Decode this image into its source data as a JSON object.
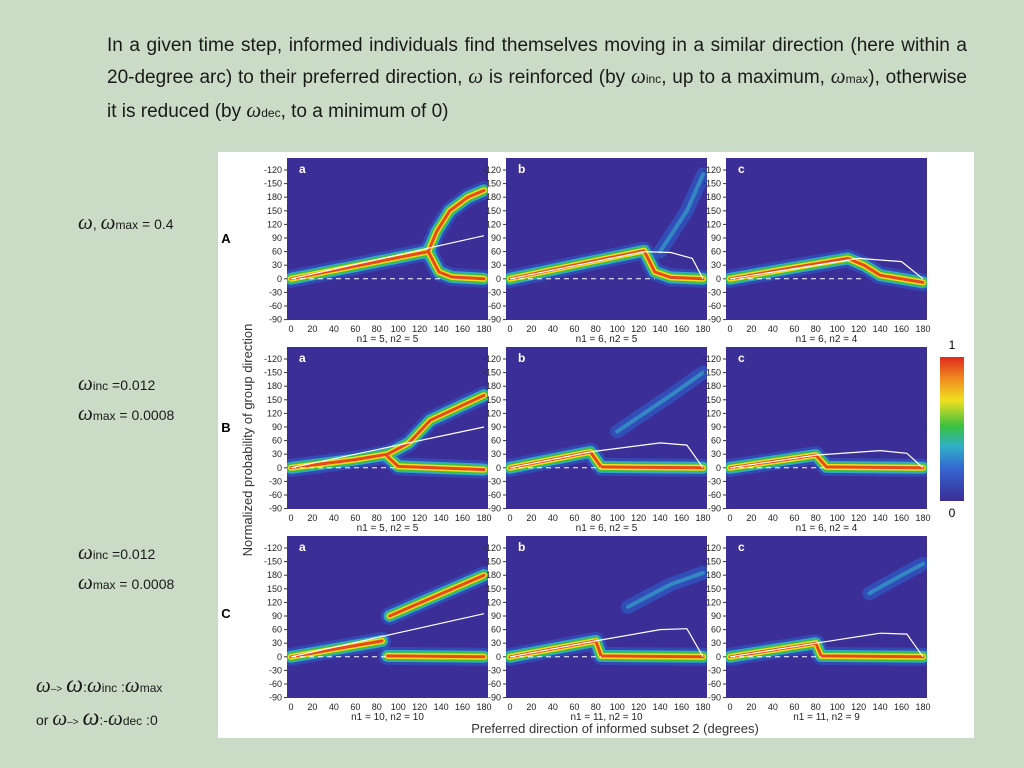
{
  "paragraph": [
    "In a given time step, informed individuals find themselves moving in a similar direction (here within a 20-degree arc) to their preferred direction, ",
    "ω",
    " is reinforced (by ",
    "ω",
    "inc",
    ", up to a maximum, ",
    "ω",
    "max",
    "), otherwise it is reduced (by ",
    "ω",
    "dec",
    ", to a minimum of 0)"
  ],
  "annotations": {
    "row_a": [
      "ω",
      ", ",
      "ω",
      "max",
      " = 0.4"
    ],
    "row_b": [
      [
        "ω",
        "inc",
        " =0.012"
      ],
      [
        "ω",
        "max",
        " = 0.0008"
      ]
    ],
    "row_c": [
      [
        "ω",
        "inc",
        " =0.012"
      ],
      [
        "ω",
        "max",
        " = 0.0008"
      ]
    ],
    "rule_1": [
      "ω",
      "–>",
      "ω",
      ":",
      "ω",
      "inc",
      " :",
      "ω",
      "max"
    ],
    "rule_2": [
      "or ",
      "ω",
      "–>",
      "ω",
      ":-",
      "ω",
      "dec",
      " :0"
    ]
  },
  "figure": {
    "row_labels": [
      "A",
      "B",
      "C"
    ],
    "panel_letters": [
      "a",
      "b",
      "c"
    ],
    "y_axis_label": "Normalized probability of group direction",
    "x_axis_label": "Preferred direction of informed subset 2 (degrees)",
    "yticks": [
      -120,
      -150,
      180,
      150,
      120,
      90,
      60,
      30,
      0,
      -30,
      -60,
      -90
    ],
    "xticks": [
      0,
      20,
      40,
      60,
      80,
      100,
      120,
      140,
      160,
      180
    ],
    "captions": [
      [
        "n1 = 5, n2 = 5",
        "n1 = 6, n2 = 5",
        "n1 = 6, n2 = 4"
      ],
      [
        "n1 = 5, n2 = 5",
        "n1 = 6, n2 = 5",
        "n1 = 6, n2 = 4"
      ],
      [
        "n1 = 10, n2 = 10",
        "n1 = 11, n2 = 10",
        "n1 = 11, n2 = 9"
      ]
    ],
    "colorbar": {
      "max": 1,
      "min": 0
    }
  }
}
